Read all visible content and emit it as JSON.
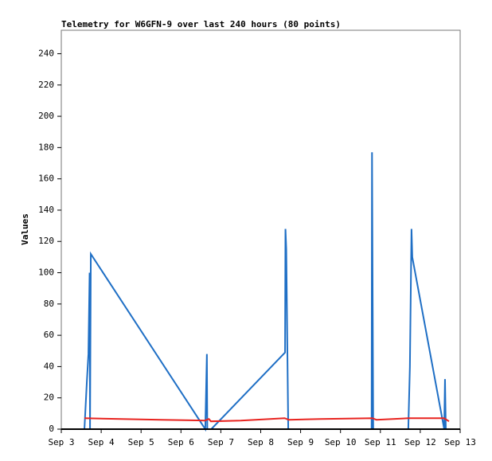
{
  "chart_data": {
    "type": "line",
    "title": "Telemetry for W6GFN-9 over last 240 hours (80 points)",
    "y_label": "Values",
    "xlim": [
      3,
      13
    ],
    "xticks": [
      {
        "value": 3,
        "label": "Sep 3"
      },
      {
        "value": 4,
        "label": "Sep 4"
      },
      {
        "value": 5,
        "label": "Sep 5"
      },
      {
        "value": 6,
        "label": "Sep 6"
      },
      {
        "value": 7,
        "label": "Sep 7"
      },
      {
        "value": 8,
        "label": "Sep 8"
      },
      {
        "value": 9,
        "label": "Sep 9"
      },
      {
        "value": 10,
        "label": "Sep 10"
      },
      {
        "value": 11,
        "label": "Sep 11"
      },
      {
        "value": 12,
        "label": "Sep 12"
      },
      {
        "value": 13,
        "label": "Sep 13"
      }
    ],
    "ylim": [
      0,
      255
    ],
    "yticks": [
      0,
      20,
      40,
      60,
      80,
      100,
      120,
      140,
      160,
      180,
      200,
      220,
      240
    ],
    "grid": false,
    "series": [
      {
        "color": "#1f6fc5",
        "x": [
          3.58,
          3.64,
          3.68,
          3.71,
          3.72,
          3.74,
          6.61,
          6.65,
          6.66,
          6.76,
          8.61,
          8.62,
          8.64,
          8.69,
          10.78,
          10.79,
          10.82,
          11.7,
          11.74,
          11.78,
          11.8,
          12.6,
          12.62,
          12.64
        ],
        "values": [
          0,
          30,
          48,
          100,
          0,
          112,
          0,
          48,
          0,
          0,
          49,
          128,
          115,
          0,
          0,
          177,
          0,
          0,
          40,
          128,
          110,
          0,
          32,
          0
        ]
      },
      {
        "color": "#e8231f",
        "x": [
          3.58,
          4.5,
          5.5,
          6.6,
          6.7,
          6.75,
          7.5,
          8.6,
          8.7,
          9.5,
          10.8,
          10.9,
          11.7,
          12.6,
          12.72
        ],
        "values": [
          7,
          6.5,
          6,
          5.5,
          6.5,
          5,
          5.5,
          7,
          6,
          6.5,
          7,
          6,
          7,
          7,
          5
        ]
      }
    ]
  }
}
